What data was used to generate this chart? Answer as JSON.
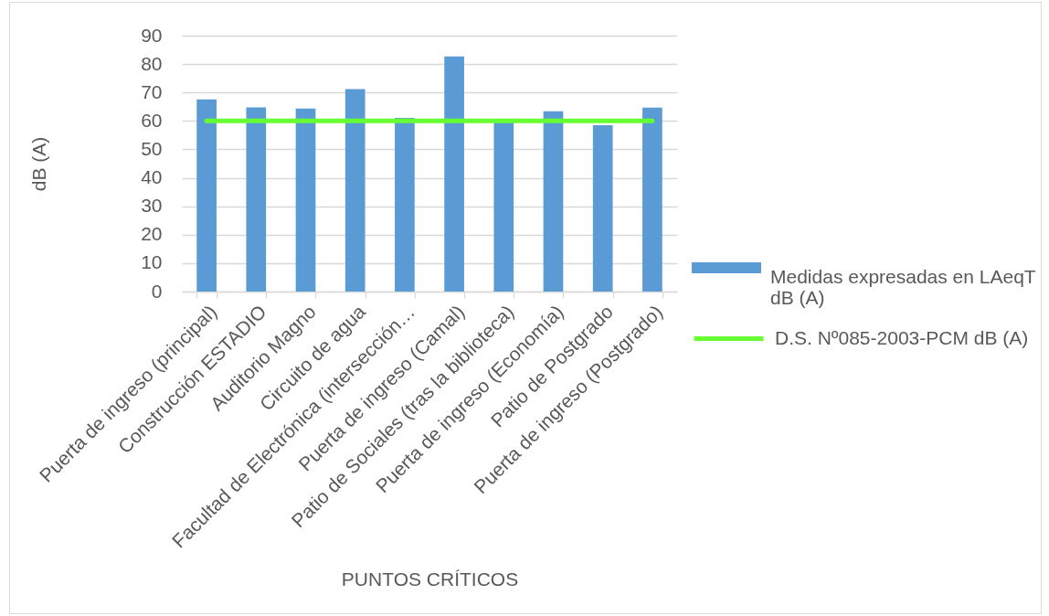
{
  "chart_data": {
    "type": "bar",
    "xlabel": "PUNTOS CRÍTICOS",
    "ylabel": "dB (A)",
    "categories": [
      "Puerta de ingreso (principal)",
      "Construcción ESTADIO",
      "Auditorio Magno",
      "Circuito de agua",
      "Facultad de Electrónica (intersección…",
      "Puerta de ingreso (Camal)",
      "Patio de Sociales (tras la biblioteca)",
      "Puerta de ingreso (Economía)",
      "Patio de Postgrado",
      "Puerta de ingreso (Postgrado)"
    ],
    "series": [
      {
        "name": "Medidas expresadas en LAeqT dB (A)",
        "color": "#5b9bd5",
        "values": [
          67.6,
          64.8,
          64.4,
          71.2,
          61.1,
          82.7,
          60,
          63.4,
          58.5,
          64.7
        ]
      },
      {
        "name": "D.S. Nº085-2003-PCM dB (A)",
        "type": "line",
        "color": "#66ff33",
        "values": [
          60,
          60,
          60,
          60,
          60,
          60,
          60,
          60,
          60,
          60
        ]
      }
    ],
    "ylim": [
      0,
      90
    ],
    "yticks": [
      0,
      10,
      20,
      30,
      40,
      50,
      60,
      70,
      80,
      90
    ],
    "grid": "y",
    "legend": "right",
    "marker": "none"
  }
}
